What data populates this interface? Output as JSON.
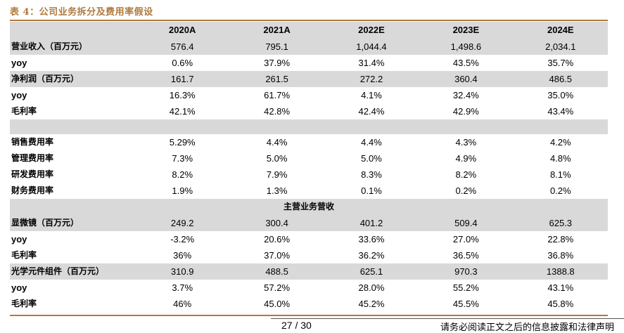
{
  "title": "表 4：公司业务拆分及费用率假设",
  "headers": [
    "",
    "2020A",
    "2021A",
    "2022E",
    "2023E",
    "2024E"
  ],
  "rows": [
    {
      "label": "营业收入（百万元）",
      "values": [
        "576.4",
        "795.1",
        "1,044.4",
        "1,498.6",
        "2,034.1"
      ],
      "shade": true
    },
    {
      "label": "yoy",
      "values": [
        "0.6%",
        "37.9%",
        "31.4%",
        "43.5%",
        "35.7%"
      ],
      "shade": false
    },
    {
      "label": "净利润（百万元）",
      "values": [
        "161.7",
        "261.5",
        "272.2",
        "360.4",
        "486.5"
      ],
      "shade": true
    },
    {
      "label": "yoy",
      "values": [
        "16.3%",
        "61.7%",
        "4.1%",
        "32.4%",
        "35.0%"
      ],
      "shade": false
    },
    {
      "label": "毛利率",
      "values": [
        "42.1%",
        "42.8%",
        "42.4%",
        "42.9%",
        "43.4%"
      ],
      "shade": false
    },
    {
      "label": "",
      "values": [
        "",
        "",
        "",
        "",
        ""
      ],
      "shade": true,
      "blank": true
    },
    {
      "label": "销售费用率",
      "values": [
        "5.29%",
        "4.4%",
        "4.4%",
        "4.3%",
        "4.2%"
      ],
      "shade": false
    },
    {
      "label": "管理费用率",
      "values": [
        "7.3%",
        "5.0%",
        "5.0%",
        "4.9%",
        "4.8%"
      ],
      "shade": false
    },
    {
      "label": "研发费用率",
      "values": [
        "8.2%",
        "7.9%",
        "8.3%",
        "8.2%",
        "8.1%"
      ],
      "shade": false
    },
    {
      "label": "财务费用率",
      "values": [
        "1.9%",
        "1.3%",
        "0.1%",
        "0.2%",
        "0.2%"
      ],
      "shade": false
    }
  ],
  "section_title": "主营业务营收",
  "rows2": [
    {
      "label": "显微镜（百万元）",
      "values": [
        "249.2",
        "300.4",
        "401.2",
        "509.4",
        "625.3"
      ],
      "shade": true
    },
    {
      "label": "yoy",
      "values": [
        "-3.2%",
        "20.6%",
        "33.6%",
        "27.0%",
        "22.8%"
      ],
      "shade": false
    },
    {
      "label": "毛利率",
      "values": [
        "36%",
        "37.0%",
        "36.2%",
        "36.5%",
        "36.8%"
      ],
      "shade": false
    },
    {
      "label": "光学元件组件（百万元）",
      "values": [
        "310.9",
        "488.5",
        "625.1",
        "970.3",
        "1388.8"
      ],
      "shade": true
    },
    {
      "label": "yoy",
      "values": [
        "3.7%",
        "57.2%",
        "28.0%",
        "55.2%",
        "43.1%"
      ],
      "shade": false
    },
    {
      "label": "毛利率",
      "values": [
        "46%",
        "45.0%",
        "45.2%",
        "45.5%",
        "45.8%"
      ],
      "shade": false
    }
  ],
  "footer": {
    "page": "27 / 30",
    "disclaimer": "请务必阅读正文之后的信息披露和法律声明"
  },
  "colors": {
    "accent": "#b07a3e",
    "shade": "#d9d9d9"
  }
}
